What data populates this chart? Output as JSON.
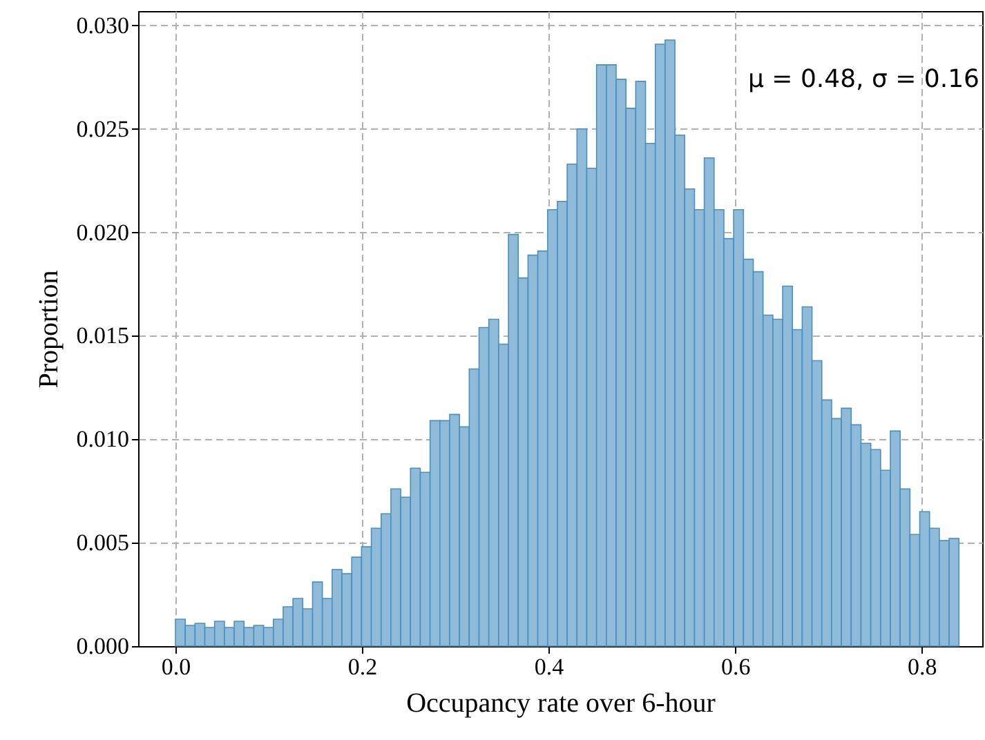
{
  "chart_data": {
    "type": "histogram",
    "xlabel": "Occupancy rate over 6-hour",
    "ylabel": "Proportion",
    "annotations": [
      "μ = 0.48, σ = 0.16"
    ],
    "bins": [
      0,
      0.0105,
      0.021,
      0.0315,
      0.042,
      0.0525,
      0.063,
      0.0735,
      0.084,
      0.0945,
      0.105,
      0.1155,
      0.126,
      0.1365,
      0.147,
      0.1575,
      0.168,
      0.1785,
      0.189,
      0.1995,
      0.21,
      0.2205,
      0.231,
      0.2415,
      0.252,
      0.2625,
      0.273,
      0.2835,
      0.294,
      0.3045,
      0.315,
      0.3255,
      0.336,
      0.3465,
      0.357,
      0.3675,
      0.378,
      0.3885,
      0.399,
      0.4095,
      0.42,
      0.4305,
      0.441,
      0.4515,
      0.462,
      0.4725,
      0.483,
      0.4935,
      0.504,
      0.5145,
      0.525,
      0.5355,
      0.546,
      0.5565,
      0.567,
      0.5775,
      0.588,
      0.5985,
      0.609,
      0.6195,
      0.63,
      0.6405,
      0.651,
      0.6615,
      0.672,
      0.6825,
      0.693,
      0.7035,
      0.714,
      0.7245,
      0.735,
      0.7455,
      0.756,
      0.7665,
      0.777,
      0.7875,
      0.798,
      0.8085,
      0.819,
      0.8295,
      0.84
    ],
    "values": [
      0.0013,
      0.001,
      0.0011,
      0.0009,
      0.0012,
      0.0009,
      0.0012,
      0.0009,
      0.001,
      0.0009,
      0.0013,
      0.0019,
      0.0023,
      0.0018,
      0.0031,
      0.0023,
      0.0037,
      0.0035,
      0.0043,
      0.0048,
      0.0057,
      0.0064,
      0.0076,
      0.0072,
      0.0086,
      0.0084,
      0.0109,
      0.0109,
      0.0112,
      0.0106,
      0.0134,
      0.0154,
      0.0158,
      0.0146,
      0.0199,
      0.0178,
      0.0189,
      0.0191,
      0.0211,
      0.0215,
      0.0233,
      0.025,
      0.0231,
      0.0281,
      0.0281,
      0.0274,
      0.026,
      0.0273,
      0.0243,
      0.0291,
      0.0293,
      0.0247,
      0.0221,
      0.0211,
      0.0236,
      0.0211,
      0.0197,
      0.0211,
      0.0187,
      0.0181,
      0.016,
      0.0158,
      0.0174,
      0.0153,
      0.0164,
      0.0138,
      0.0119,
      0.011,
      0.0115,
      0.0107,
      0.0098,
      0.0095,
      0.0085,
      0.0104,
      0.0076,
      0.0054,
      0.0065,
      0.0057,
      0.0051,
      0.0052
    ],
    "color": "#8fbbd9",
    "xlim": [
      -0.04,
      0.865
    ],
    "ylim": [
      0,
      0.0307
    ],
    "xticks": [
      {
        "value": 0,
        "label": "0.0"
      },
      {
        "value": 0.2,
        "label": "0.2"
      },
      {
        "value": 0.4,
        "label": "0.4"
      },
      {
        "value": 0.6,
        "label": "0.6"
      },
      {
        "value": 0.8,
        "label": "0.8"
      }
    ],
    "yticks": [
      {
        "value": 0,
        "label": "0.000"
      },
      {
        "value": 0.005,
        "label": "0.005"
      },
      {
        "value": 0.01,
        "label": "0.010"
      },
      {
        "value": 0.015,
        "label": "0.015"
      },
      {
        "value": 0.02,
        "label": "0.020"
      },
      {
        "value": 0.025,
        "label": "0.025"
      },
      {
        "value": 0.03,
        "label": "0.030"
      }
    ],
    "grid": true
  }
}
